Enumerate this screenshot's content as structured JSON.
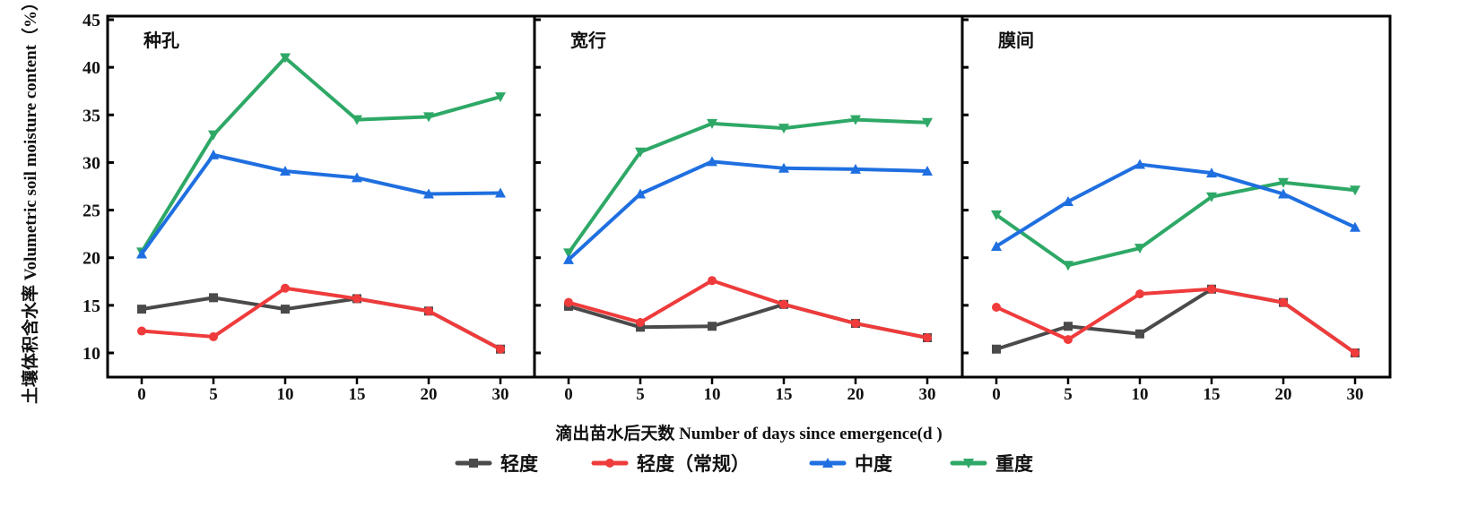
{
  "chart_data": {
    "type": "line",
    "ylabel": "土壤体积含水率 Volumetric soil moisture content（%）",
    "xlabel": "滴出苗水后天数  Number of days since emergence(d )",
    "x_categories": [
      "0",
      "5",
      "10",
      "15",
      "20",
      "30"
    ],
    "y_ticks": [
      10,
      15,
      20,
      25,
      30,
      35,
      40,
      45
    ],
    "ylim": [
      7.5,
      45
    ],
    "grid": false,
    "legend_position": "bottom",
    "legend": [
      {
        "name": "轻度",
        "color": "#4a4a4a",
        "marker": "square"
      },
      {
        "name": "轻度（常规）",
        "color": "#ef3b3b",
        "marker": "circle"
      },
      {
        "name": "中度",
        "color": "#1f6fe0",
        "marker": "triangle-up"
      },
      {
        "name": "重度",
        "color": "#2ea866",
        "marker": "triangle-down"
      }
    ],
    "panels": [
      {
        "title": "种孔",
        "series": [
          {
            "name": "轻度",
            "values": [
              14.6,
              15.8,
              14.6,
              15.7,
              14.4,
              10.4
            ]
          },
          {
            "name": "轻度（常规）",
            "values": [
              12.3,
              11.7,
              16.8,
              15.7,
              14.4,
              10.4
            ]
          },
          {
            "name": "中度",
            "values": [
              20.4,
              30.8,
              29.1,
              28.4,
              26.7,
              26.8
            ]
          },
          {
            "name": "重度",
            "values": [
              20.6,
              32.9,
              41.0,
              34.5,
              34.8,
              36.9
            ]
          }
        ]
      },
      {
        "title": "宽行",
        "series": [
          {
            "name": "轻度",
            "values": [
              14.9,
              12.7,
              12.8,
              15.1,
              13.1,
              11.6
            ]
          },
          {
            "name": "轻度（常规）",
            "values": [
              15.3,
              13.2,
              17.6,
              15.1,
              13.1,
              11.6
            ]
          },
          {
            "name": "中度",
            "values": [
              19.8,
              26.7,
              30.1,
              29.4,
              29.3,
              29.1
            ]
          },
          {
            "name": "重度",
            "values": [
              20.5,
              31.1,
              34.1,
              33.6,
              34.5,
              34.2
            ]
          }
        ]
      },
      {
        "title": "膜间",
        "series": [
          {
            "name": "轻度",
            "values": [
              10.4,
              12.8,
              12.0,
              16.7,
              15.3,
              10.0
            ]
          },
          {
            "name": "轻度（常规）",
            "values": [
              14.8,
              11.4,
              16.2,
              16.7,
              15.3,
              10.0
            ]
          },
          {
            "name": "中度",
            "values": [
              21.2,
              25.9,
              29.8,
              28.9,
              26.7,
              23.2
            ]
          },
          {
            "name": "重度",
            "values": [
              24.5,
              19.2,
              21.0,
              26.4,
              27.9,
              27.1
            ]
          }
        ]
      }
    ]
  }
}
